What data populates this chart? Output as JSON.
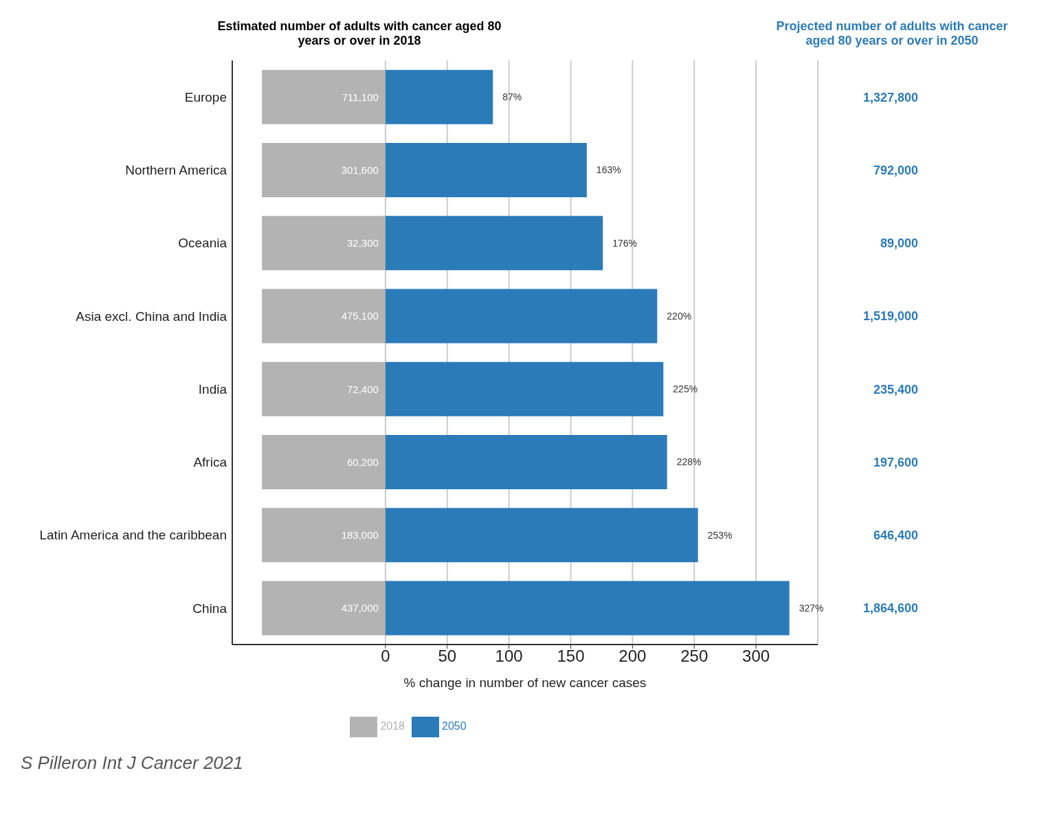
{
  "chart_data": {
    "type": "bar",
    "orientation": "horizontal",
    "stacked": true,
    "title": "Estimated number of adults with cancer aged 80 years or over in 2018",
    "xlabel": "% change in number of new cancer cases",
    "categories": [
      "Europe",
      "Northern America",
      "Oceania",
      "Asia excl. China and India",
      "India",
      "Africa",
      "Latin America and the caribbean",
      "China"
    ],
    "series": [
      {
        "name": "2018",
        "color": "#b3b3b3",
        "values": [
          -100,
          -100,
          -100,
          -100,
          -100,
          -100,
          -100,
          -100
        ]
      },
      {
        "name": "2050",
        "color": "#2b7bb9",
        "values": [
          87,
          163,
          176,
          220,
          225,
          228,
          253,
          327
        ],
        "value_labels": [
          "87%",
          "163%",
          "176%",
          "220%",
          "225%",
          "228%",
          "253%",
          "327%"
        ]
      }
    ],
    "xlim": [
      -124,
      350
    ],
    "xticks": [
      0,
      50,
      100,
      150,
      200,
      250,
      300
    ],
    "grid": "x",
    "legend": "bottom",
    "annotations": [
      "Projected number of adults with cancer aged 80 years or over in 2050",
      "711,100",
      "301,600",
      "32,300",
      "475,100",
      "72,400",
      "60,200",
      "183,000",
      "437,000",
      "1,327,800",
      "792,000",
      "89,000",
      "1,519,000",
      "235,400",
      "197,600",
      "646,400",
      "1,864,600",
      "S Pilleron Int J Cancer 2021"
    ]
  }
}
